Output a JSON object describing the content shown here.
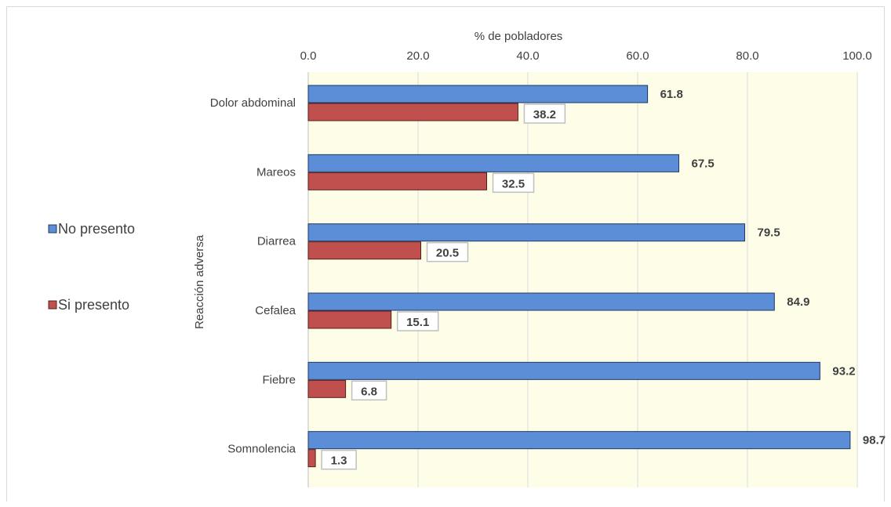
{
  "chart_data": {
    "type": "bar",
    "orientation": "horizontal",
    "categories": [
      "Dolor abdominal",
      "Mareos",
      "Diarrea",
      "Cefalea",
      "Fiebre",
      "Somnolencia"
    ],
    "series": [
      {
        "name": "No presento",
        "color": "#5b8ed6",
        "values": [
          61.8,
          67.5,
          79.5,
          84.9,
          93.2,
          98.7
        ]
      },
      {
        "name": "Si presento",
        "color": "#c0504d",
        "values": [
          38.2,
          32.5,
          20.5,
          15.1,
          6.8,
          1.3
        ]
      }
    ],
    "value_labels": [
      [
        "61.8",
        "67.5",
        "79.5",
        "84.9",
        "93.2",
        "98.7"
      ],
      [
        "38.2",
        "32.5",
        "20.5",
        "15.1",
        "6.8",
        "1.3"
      ]
    ],
    "xlabel": "% de pobladores",
    "ylabel": "Reacción adversa",
    "xlim": [
      0,
      100
    ],
    "xticks": [
      0,
      20,
      40,
      60,
      80,
      100
    ],
    "xtick_labels": [
      "0.0",
      "20.0",
      "40.0",
      "60.0",
      "80.0",
      "100.0"
    ],
    "x_axis_position": "top",
    "grid": true,
    "plot_background": "#fefee8",
    "legend_position": "left"
  }
}
